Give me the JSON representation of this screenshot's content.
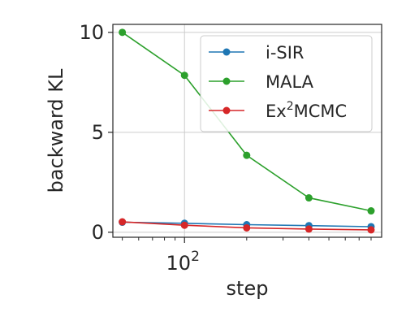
{
  "chart_data": {
    "type": "line",
    "xscale": "log",
    "xlabel": "step",
    "ylabel": "backward KL",
    "xlim": [
      45,
      900
    ],
    "ylim": [
      -0.25,
      10.4
    ],
    "xticks": [
      {
        "value": 100,
        "base": "10",
        "exp": "2"
      }
    ],
    "yticks": [
      {
        "value": 0,
        "label": "0"
      },
      {
        "value": 5,
        "label": "5"
      },
      {
        "value": 10,
        "label": "10"
      }
    ],
    "grid": true,
    "legend_position": "upper right",
    "series": [
      {
        "name": "i-SIR",
        "name_base": "i-SIR",
        "name_sup": "",
        "name_rest": "",
        "color": "#1f77b4",
        "x": [
          50,
          100,
          200,
          400,
          800
        ],
        "y": [
          0.5,
          0.45,
          0.38,
          0.33,
          0.28
        ]
      },
      {
        "name": "MALA",
        "name_base": "MALA",
        "name_sup": "",
        "name_rest": "",
        "color": "#2ca02c",
        "x": [
          50,
          100,
          200,
          400,
          800
        ],
        "y": [
          10.0,
          7.85,
          3.85,
          1.72,
          1.07
        ]
      },
      {
        "name": "Ex2MCMC",
        "name_base": "Ex",
        "name_sup": "2",
        "name_rest": "MCMC",
        "color": "#d62728",
        "x": [
          50,
          100,
          200,
          400,
          800
        ],
        "y": [
          0.52,
          0.35,
          0.22,
          0.16,
          0.12
        ]
      }
    ]
  }
}
